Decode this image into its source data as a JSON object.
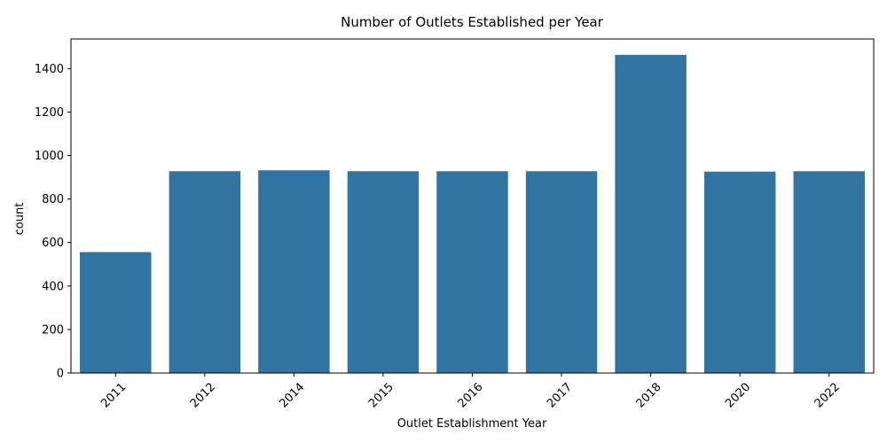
{
  "chart_data": {
    "type": "bar",
    "title": "Number of Outlets Established per Year",
    "xlabel": "Outlet Establishment Year",
    "ylabel": "count",
    "categories": [
      "2011",
      "2012",
      "2014",
      "2015",
      "2016",
      "2017",
      "2018",
      "2020",
      "2022"
    ],
    "values": [
      556,
      928,
      932,
      928,
      928,
      928,
      1463,
      926,
      928
    ],
    "ylim": [
      0,
      1536
    ],
    "yticks": [
      0,
      200,
      400,
      600,
      800,
      1000,
      1200,
      1400
    ],
    "xtick_rotation_deg": 45,
    "grid": false,
    "legend": "none",
    "bar_color": "#3274a1"
  }
}
